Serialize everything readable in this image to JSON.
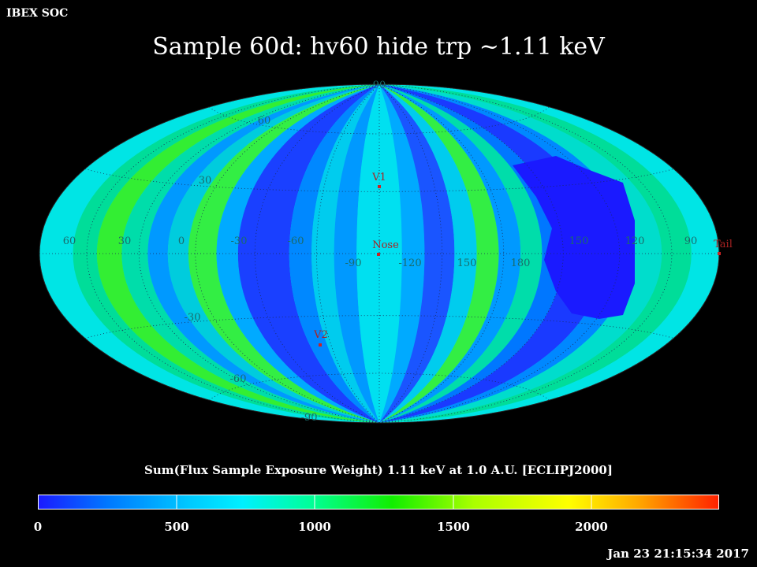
{
  "header": {
    "corner_label": "IBEX SOC",
    "title": "Sample 60d: hv60 hide trp ~1.11 keV"
  },
  "map": {
    "projection": "Hammer-Aitoff (ecliptic J2000)",
    "longitude_labels": [
      "60",
      "30",
      "0",
      "-30",
      "-60",
      "-90",
      "-120",
      "150",
      "180",
      "150",
      "120",
      "90"
    ],
    "latitude_labels": [
      "90",
      "60",
      "30",
      "-30",
      "-60",
      "-90"
    ],
    "markers": [
      {
        "name": "V1",
        "lon": 255,
        "lat": 35
      },
      {
        "name": "Nose",
        "lon": 255,
        "lat": 5
      },
      {
        "name": "V2",
        "lon": 289,
        "lat": -32
      },
      {
        "name": "Tail",
        "lon": 75,
        "lat": -5
      }
    ]
  },
  "colorbar": {
    "caption": "Sum(Flux Sample Exposure Weight)  1.11 keV at 1.0 A.U. [ECLIPJ2000]",
    "ticks": [
      "0",
      "500",
      "1000",
      "1500",
      "2000"
    ],
    "min": 0,
    "max": 2500,
    "colors": [
      "#1a1aff",
      "#0077ff",
      "#00e5ff",
      "#00ff99",
      "#11ee00",
      "#aaff00",
      "#ffff00",
      "#ffaa00",
      "#ff2200"
    ]
  },
  "footer": {
    "timestamp": "Jan 23 21:15:34 2017"
  }
}
